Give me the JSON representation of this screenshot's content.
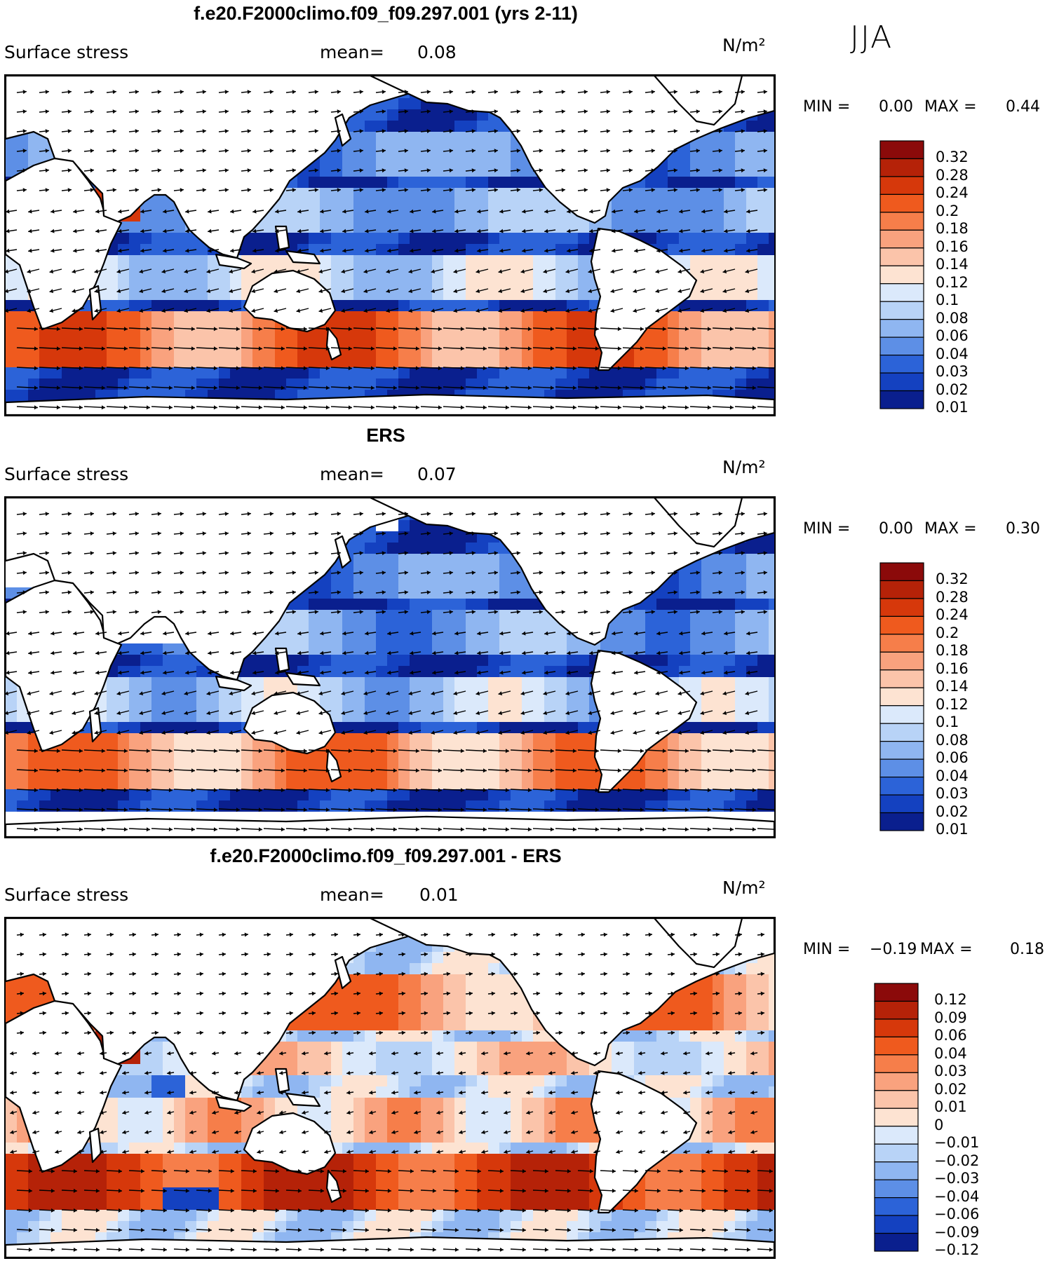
{
  "season": "JJA",
  "panels": [
    {
      "title": "f.e20.F2000climo.f09_f09.297.001 (yrs 2-11)",
      "variable": "Surface stress",
      "mean_label": "mean=",
      "mean_value": "0.08",
      "units": "N/m²",
      "min_label": "MIN =",
      "min_value": "0.00",
      "max_label": "MAX =",
      "max_value": "0.44",
      "colorbar_levels": [
        "0.32",
        "0.28",
        "0.24",
        "0.2",
        "0.18",
        "0.16",
        "0.14",
        "0.12",
        "0.1",
        "0.08",
        "0.06",
        "0.04",
        "0.03",
        "0.02",
        "0.01"
      ],
      "colorbar_colors": [
        "#8b0a0a",
        "#b52208",
        "#d6380b",
        "#ef5a1e",
        "#f67e4a",
        "#f9a27e",
        "#fbc4aa",
        "#fde3d2",
        "#dbe9fb",
        "#b8d3f7",
        "#8fb6f1",
        "#5d8fe6",
        "#2c63d8",
        "#1441c0",
        "#0a1f8e"
      ],
      "field": "model"
    },
    {
      "title": "ERS",
      "variable": "Surface stress",
      "mean_label": "mean=",
      "mean_value": "0.07",
      "units": "N/m²",
      "min_label": "MIN =",
      "min_value": "0.00",
      "max_label": "MAX =",
      "max_value": "0.30",
      "colorbar_levels": [
        "0.32",
        "0.28",
        "0.24",
        "0.2",
        "0.18",
        "0.16",
        "0.14",
        "0.12",
        "0.1",
        "0.08",
        "0.06",
        "0.04",
        "0.03",
        "0.02",
        "0.01"
      ],
      "colorbar_colors": [
        "#8b0a0a",
        "#b52208",
        "#d6380b",
        "#ef5a1e",
        "#f67e4a",
        "#f9a27e",
        "#fbc4aa",
        "#fde3d2",
        "#dbe9fb",
        "#b8d3f7",
        "#8fb6f1",
        "#5d8fe6",
        "#2c63d8",
        "#1441c0",
        "#0a1f8e"
      ],
      "field": "obs"
    },
    {
      "title": "f.e20.F2000climo.f09_f09.297.001 - ERS",
      "variable": "Surface stress",
      "mean_label": "mean=",
      "mean_value": "0.01",
      "units": "N/m²",
      "min_label": "MIN =",
      "min_value": "−0.19",
      "max_label": "MAX =",
      "max_value": "0.18",
      "colorbar_levels": [
        "0.12",
        "0.09",
        "0.06",
        "0.04",
        "0.03",
        "0.02",
        "0.01",
        "0",
        "−0.01",
        "−0.02",
        "−0.03",
        "−0.04",
        "−0.06",
        "−0.09",
        "−0.12"
      ],
      "colorbar_colors": [
        "#8b0a0a",
        "#b52208",
        "#d6380b",
        "#ef5a1e",
        "#f67e4a",
        "#f9a27e",
        "#fbc4aa",
        "#fde3d2",
        "#dbe9fb",
        "#b8d3f7",
        "#8fb6f1",
        "#5d8fe6",
        "#2c63d8",
        "#1441c0",
        "#0a1f8e"
      ],
      "field": "diff"
    }
  ]
}
